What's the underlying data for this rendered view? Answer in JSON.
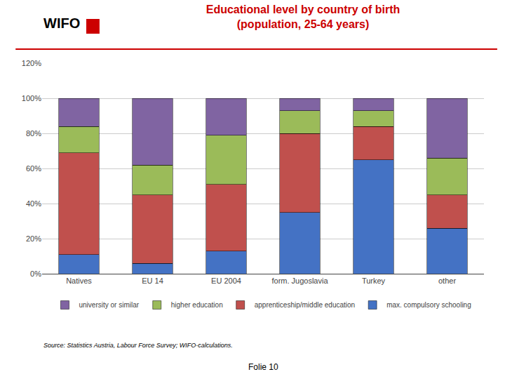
{
  "chart_data": {
    "type": "bar",
    "stacked": true,
    "title": "Educational level by country of birth",
    "subtitle": "(population, 25-64 years)",
    "categories": [
      "Natives",
      "EU 14",
      "EU 2004",
      "form. Jugoslavia",
      "Turkey",
      "other"
    ],
    "series": [
      {
        "name": "max. compulsory schooling",
        "color": "#4472C4",
        "values": [
          11,
          6,
          13,
          35,
          65,
          26
        ]
      },
      {
        "name": "apprenticeship/middle education",
        "color": "#C0504D",
        "values": [
          58,
          39,
          38,
          45,
          19,
          19
        ]
      },
      {
        "name": "higher education",
        "color": "#9BBB59",
        "values": [
          15,
          17,
          28,
          13,
          9,
          21
        ]
      },
      {
        "name": "university or similar",
        "color": "#8064A2",
        "values": [
          16,
          38,
          21,
          7,
          7,
          34
        ]
      }
    ],
    "ylim": [
      0,
      120
    ],
    "yticks": [
      {
        "value": 0,
        "label": "0%"
      },
      {
        "value": 20,
        "label": "20%"
      },
      {
        "value": 40,
        "label": "40%"
      },
      {
        "value": 60,
        "label": "60%"
      },
      {
        "value": 80,
        "label": "80%"
      },
      {
        "value": 100,
        "label": "100%"
      },
      {
        "value": 120,
        "label": "120%"
      }
    ],
    "grid": true,
    "legend": "bottom",
    "annotations": [
      "WIFO",
      "Source: Statistics Austria, Labour Force Survey; WIFO-calculations.",
      "Folie 10"
    ]
  }
}
